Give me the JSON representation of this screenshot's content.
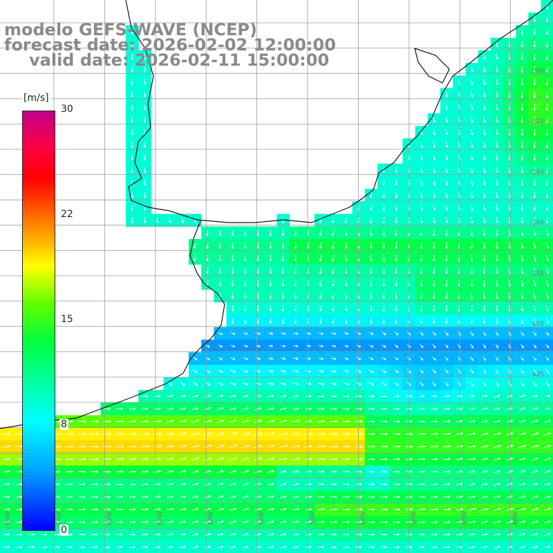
{
  "title": {
    "model": "modelo GEFS-WAVE (NCEP)",
    "forecast": "forecast date: 2026-02-02 12:00:00",
    "valid": "valid date: 2026-02-11 15:00:00"
  },
  "colorbar": {
    "unit": "[m/s]",
    "ticks": [
      "30",
      "22",
      "15",
      "8",
      "0"
    ],
    "stops": [
      "#0000ff",
      "#00a0ff",
      "#00ffff",
      "#00ff40",
      "#60ff00",
      "#ffff00",
      "#ffc000",
      "#ff6000",
      "#ff0000",
      "#ff0040",
      "#c0008c"
    ]
  },
  "grid": {
    "lat_labels": [
      "30S",
      "32S",
      "34S",
      "36S",
      "38S",
      "40S",
      "42S"
    ],
    "lon_labels": [
      "66W",
      "64W",
      "62W",
      "60W",
      "58W",
      "56W",
      "54W",
      "52W",
      "50W",
      "48W",
      "46W"
    ]
  },
  "colors": {
    "land": "#ffffff",
    "coast": "#111111",
    "grid_line": "#9a9a9a",
    "arrow": "#ffffff",
    "title": "#8a8a8a"
  }
}
